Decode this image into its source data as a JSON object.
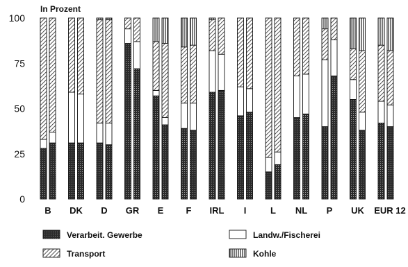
{
  "chart_data": {
    "type": "bar",
    "stacked": true,
    "ylabel": "In Prozent",
    "ylim": [
      0,
      100
    ],
    "yticks": [
      0,
      25,
      50,
      75,
      100
    ],
    "grid": false,
    "legend_position": "bottom",
    "categories": [
      "B",
      "DK",
      "D",
      "GR",
      "E",
      "F",
      "IRL",
      "I",
      "L",
      "NL",
      "P",
      "UK",
      "EUR 12"
    ],
    "bars_per_category": 2,
    "series": [
      {
        "name": "Verarbeit. Gewerbe",
        "pattern": "dark-dotted",
        "values": [
          [
            28,
            31
          ],
          [
            31,
            31
          ],
          [
            31,
            30
          ],
          [
            86,
            72
          ],
          [
            57,
            41
          ],
          [
            39,
            38
          ],
          [
            59,
            60
          ],
          [
            46,
            48
          ],
          [
            15,
            19
          ],
          [
            45,
            47
          ],
          [
            40,
            68
          ],
          [
            55,
            38
          ],
          [
            42,
            40
          ]
        ]
      },
      {
        "name": "Landw./Fischerei",
        "pattern": "white",
        "values": [
          [
            5,
            6
          ],
          [
            28,
            27
          ],
          [
            11,
            12
          ],
          [
            8,
            15
          ],
          [
            3,
            4
          ],
          [
            14,
            15
          ],
          [
            23,
            20
          ],
          [
            16,
            13
          ],
          [
            8,
            7
          ],
          [
            23,
            22
          ],
          [
            37,
            20
          ],
          [
            11,
            10
          ],
          [
            12,
            12
          ]
        ]
      },
      {
        "name": "Transport",
        "pattern": "diagonal-hatch",
        "values": [
          [
            67,
            63
          ],
          [
            41,
            42
          ],
          [
            57,
            57
          ],
          [
            6,
            13
          ],
          [
            27,
            41
          ],
          [
            31,
            32
          ],
          [
            17,
            20
          ],
          [
            38,
            39
          ],
          [
            77,
            74
          ],
          [
            32,
            31
          ],
          [
            17,
            12
          ],
          [
            17,
            34
          ],
          [
            31,
            30
          ]
        ]
      },
      {
        "name": "Kohle",
        "pattern": "vertical-lines",
        "values": [
          [
            0,
            0
          ],
          [
            0,
            0
          ],
          [
            1,
            1
          ],
          [
            0,
            0
          ],
          [
            13,
            14
          ],
          [
            16,
            15
          ],
          [
            1,
            0
          ],
          [
            0,
            0
          ],
          [
            0,
            0
          ],
          [
            0,
            0
          ],
          [
            6,
            0
          ],
          [
            17,
            18
          ],
          [
            15,
            18
          ]
        ]
      }
    ]
  }
}
